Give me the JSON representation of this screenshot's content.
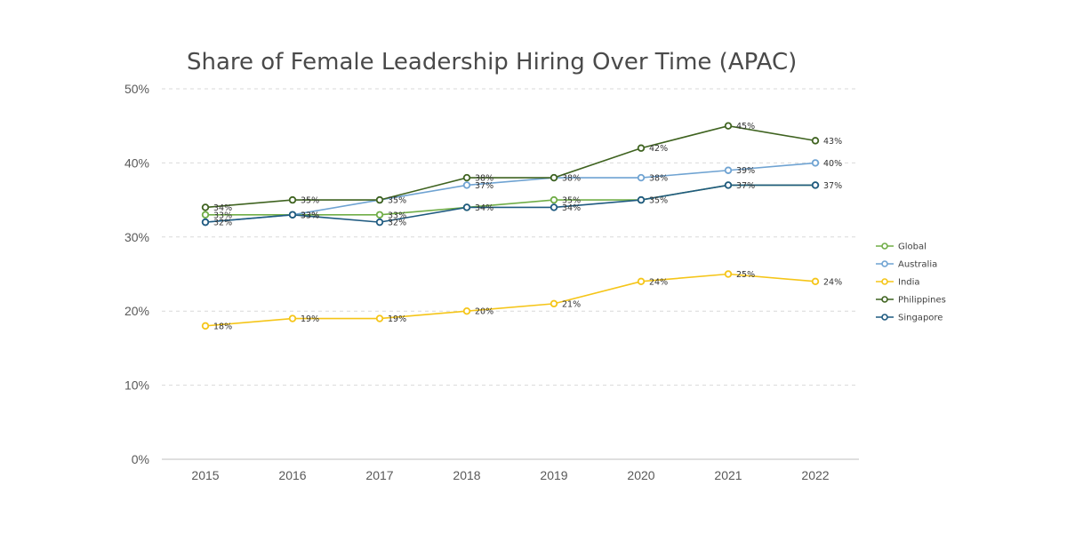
{
  "chart_data": {
    "type": "line",
    "title": "Share of Female Leadership Hiring Over Time (APAC)",
    "xlabel": "",
    "ylabel": "",
    "categories": [
      "2015",
      "2016",
      "2017",
      "2018",
      "2019",
      "2020",
      "2021",
      "2022"
    ],
    "ylim": [
      0,
      50
    ],
    "y_ticks": [
      "0%",
      "10%",
      "20%",
      "30%",
      "40%",
      "50%"
    ],
    "y_tick_values": [
      0,
      10,
      20,
      30,
      40,
      50
    ],
    "grid": true,
    "legend_position": "right",
    "series": [
      {
        "name": "Global",
        "color": "#70ad47",
        "values": [
          33,
          33,
          33,
          34,
          35,
          35,
          37,
          37
        ]
      },
      {
        "name": "Australia",
        "color": "#6fa3d2",
        "values": [
          32,
          33,
          35,
          37,
          38,
          38,
          39,
          40
        ]
      },
      {
        "name": "India",
        "color": "#f5c518",
        "values": [
          18,
          19,
          19,
          20,
          21,
          24,
          25,
          24
        ]
      },
      {
        "name": "Philippines",
        "color": "#3f6320",
        "values": [
          34,
          35,
          35,
          38,
          38,
          42,
          45,
          43
        ]
      },
      {
        "name": "Singapore",
        "color": "#1f5a80",
        "values": [
          32,
          33,
          32,
          34,
          34,
          35,
          37,
          37
        ]
      }
    ],
    "data_labels": [
      {
        "series": 0,
        "texts": [
          "33%",
          "33%",
          "33%",
          "",
          "35%",
          "",
          "",
          ""
        ]
      },
      {
        "series": 1,
        "texts": [
          "",
          "",
          "",
          "37%",
          "",
          "38%",
          "39%",
          "40%"
        ]
      },
      {
        "series": 2,
        "texts": [
          "18%",
          "19%",
          "19%",
          "20%",
          "21%",
          "24%",
          "25%",
          "24%"
        ]
      },
      {
        "series": 3,
        "texts": [
          "34%",
          "35%",
          "35%",
          "38%",
          "38%",
          "42%",
          "45%",
          "43%"
        ]
      },
      {
        "series": 4,
        "texts": [
          "32%",
          "33%",
          "32%",
          "34%",
          "34%",
          "35%",
          "37%",
          "37%"
        ]
      }
    ]
  }
}
